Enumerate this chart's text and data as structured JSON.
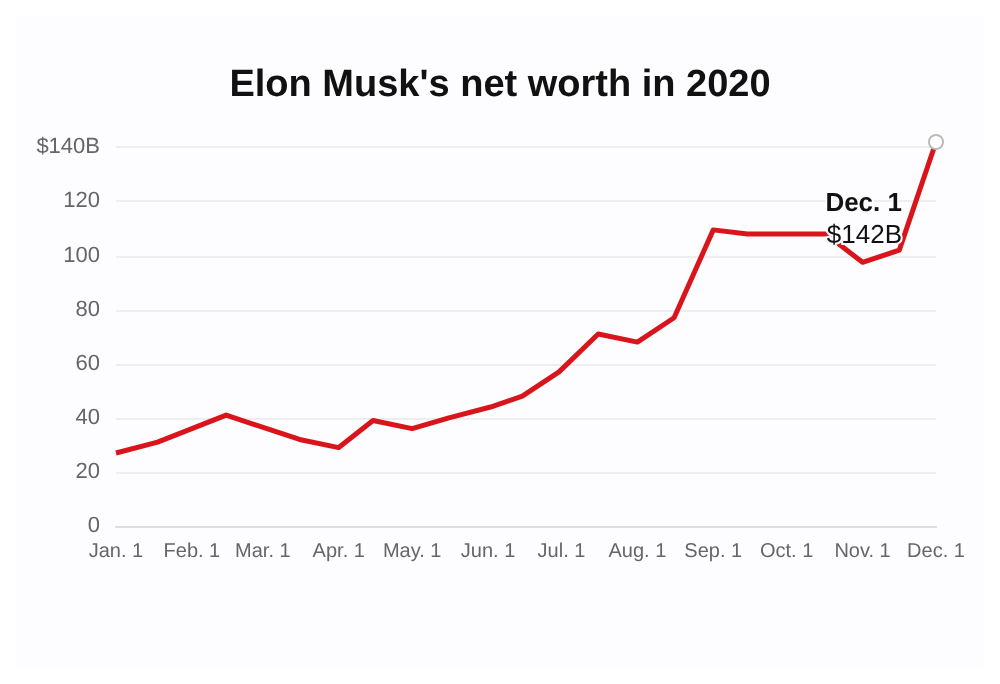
{
  "chart_data": {
    "type": "line",
    "title": "Elon Musk's net worth in 2020",
    "x": [
      "2020-01-01",
      "2020-01-18",
      "2020-02-15",
      "2020-03-16",
      "2020-04-01",
      "2020-04-15",
      "2020-05-01",
      "2020-05-16",
      "2020-06-02",
      "2020-06-15",
      "2020-06-30",
      "2020-07-16",
      "2020-08-01",
      "2020-08-16",
      "2020-09-01",
      "2020-09-15",
      "2020-10-17",
      "2020-11-01",
      "2020-11-16",
      "2020-12-01"
    ],
    "series": [
      {
        "color": "#d9141b",
        "values": [
          27,
          31,
          41,
          32,
          29,
          39,
          36,
          40,
          44,
          48,
          57,
          71,
          68,
          77,
          109.5,
          108,
          108,
          97.5,
          102,
          142
        ]
      }
    ],
    "xlim": [
      "2020-01-01",
      "2020-12-01"
    ],
    "xticks": [
      {
        "value": "2020-01-01",
        "label": "Jan. 1"
      },
      {
        "value": "2020-02-01",
        "label": "Feb. 1"
      },
      {
        "value": "2020-03-01",
        "label": "Mar. 1"
      },
      {
        "value": "2020-04-01",
        "label": "Apr. 1"
      },
      {
        "value": "2020-05-01",
        "label": "May. 1"
      },
      {
        "value": "2020-06-01",
        "label": "Jun. 1"
      },
      {
        "value": "2020-07-01",
        "label": "Jul. 1"
      },
      {
        "value": "2020-08-01",
        "label": "Aug. 1"
      },
      {
        "value": "2020-09-01",
        "label": "Sep. 1"
      },
      {
        "value": "2020-10-01",
        "label": "Oct. 1"
      },
      {
        "value": "2020-11-01",
        "label": "Nov. 1"
      },
      {
        "value": "2020-12-01",
        "label": "Dec. 1"
      }
    ],
    "ylim": [
      0,
      142
    ],
    "yticks": [
      0,
      20,
      40,
      60,
      80,
      100,
      120,
      {
        "value": 140,
        "label": "$140B"
      }
    ],
    "grid": "y",
    "annotations": [
      {
        "text": "Dec. 1\n$142B",
        "x": "2020-12-01",
        "y": 142
      }
    ]
  }
}
